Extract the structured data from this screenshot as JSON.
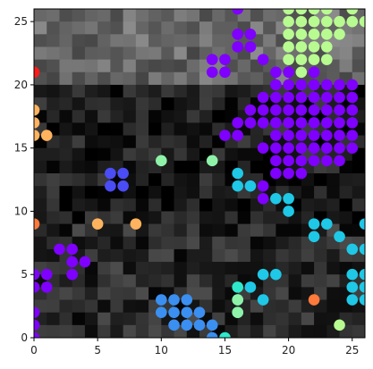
{
  "chart_data": {
    "type": "scatter",
    "title": "",
    "xlabel": "",
    "ylabel": "",
    "xlim": [
      0,
      26
    ],
    "ylim": [
      0,
      26
    ],
    "grid": false,
    "x_ticks": [
      0,
      5,
      10,
      15,
      20,
      25
    ],
    "y_ticks": [
      0,
      5,
      10,
      15,
      20,
      25
    ],
    "x_tick_labels": [
      "0",
      "5",
      "10",
      "15",
      "20",
      "25"
    ],
    "y_tick_labels": [
      "0",
      "5",
      "10",
      "15",
      "20",
      "25"
    ],
    "background": {
      "type": "heatmap",
      "colormap": "gray",
      "grid_size": [
        26,
        26
      ],
      "description_levels": [
        "black",
        "dark gray",
        "mid gray",
        "light gray"
      ]
    },
    "series": [
      {
        "color": "#7f00ff",
        "points": [
          [
            16,
            26
          ],
          [
            16,
            24
          ],
          [
            17,
            24
          ],
          [
            16,
            23
          ],
          [
            17,
            23
          ],
          [
            14,
            22
          ],
          [
            15,
            22
          ],
          [
            14,
            21
          ],
          [
            15,
            21
          ],
          [
            18,
            22
          ],
          [
            19,
            21
          ],
          [
            20,
            21
          ],
          [
            21,
            21
          ],
          [
            22,
            21
          ],
          [
            19,
            20
          ],
          [
            20,
            20
          ],
          [
            21,
            20
          ],
          [
            22,
            20
          ],
          [
            23,
            20
          ],
          [
            24,
            20
          ],
          [
            25,
            20
          ],
          [
            18,
            19
          ],
          [
            19,
            19
          ],
          [
            20,
            19
          ],
          [
            21,
            19
          ],
          [
            22,
            19
          ],
          [
            23,
            19
          ],
          [
            24,
            19
          ],
          [
            25,
            19
          ],
          [
            17,
            18
          ],
          [
            18,
            18
          ],
          [
            19,
            18
          ],
          [
            20,
            18
          ],
          [
            21,
            18
          ],
          [
            22,
            18
          ],
          [
            23,
            18
          ],
          [
            24,
            18
          ],
          [
            25,
            18
          ],
          [
            16,
            17
          ],
          [
            17,
            17
          ],
          [
            18,
            17
          ],
          [
            19,
            17
          ],
          [
            20,
            17
          ],
          [
            21,
            17
          ],
          [
            22,
            17
          ],
          [
            23,
            17
          ],
          [
            24,
            17
          ],
          [
            25,
            17
          ],
          [
            15,
            16
          ],
          [
            16,
            16
          ],
          [
            19,
            16
          ],
          [
            20,
            16
          ],
          [
            21,
            16
          ],
          [
            22,
            16
          ],
          [
            23,
            16
          ],
          [
            24,
            16
          ],
          [
            25,
            16
          ],
          [
            18,
            15
          ],
          [
            19,
            15
          ],
          [
            20,
            15
          ],
          [
            21,
            15
          ],
          [
            22,
            15
          ],
          [
            23,
            15
          ],
          [
            24,
            15
          ],
          [
            25,
            15
          ],
          [
            19,
            14
          ],
          [
            20,
            14
          ],
          [
            21,
            14
          ],
          [
            22,
            14
          ],
          [
            23,
            14
          ],
          [
            24,
            14
          ],
          [
            19,
            13
          ],
          [
            20,
            13
          ],
          [
            21,
            13
          ],
          [
            17,
            12
          ],
          [
            18,
            12
          ],
          [
            18,
            11
          ],
          [
            2,
            7
          ],
          [
            3,
            7
          ],
          [
            3,
            6
          ],
          [
            4,
            6
          ],
          [
            0,
            5
          ],
          [
            1,
            5
          ],
          [
            0,
            4
          ],
          [
            1,
            4
          ],
          [
            3,
            5
          ],
          [
            0,
            2
          ],
          [
            0,
            1
          ],
          [
            0,
            0
          ]
        ]
      },
      {
        "color": "#4a4cf6",
        "points": [
          [
            6,
            13
          ],
          [
            7,
            13
          ],
          [
            6,
            12
          ],
          [
            7,
            12
          ]
        ]
      },
      {
        "color": "#3a8ff0",
        "points": [
          [
            10,
            3
          ],
          [
            11,
            3
          ],
          [
            12,
            3
          ],
          [
            10,
            2
          ],
          [
            11,
            2
          ],
          [
            12,
            2
          ],
          [
            13,
            2
          ],
          [
            11,
            1
          ],
          [
            12,
            1
          ],
          [
            13,
            1
          ],
          [
            14,
            1
          ],
          [
            14,
            0
          ]
        ]
      },
      {
        "color": "#1ec8e6",
        "points": [
          [
            16,
            13
          ],
          [
            16,
            12
          ],
          [
            17,
            12
          ],
          [
            19,
            11
          ],
          [
            20,
            11
          ],
          [
            20,
            10
          ],
          [
            22,
            9
          ],
          [
            23,
            9
          ],
          [
            22,
            8
          ],
          [
            24,
            8
          ],
          [
            26,
            9
          ],
          [
            25,
            7
          ],
          [
            26,
            7
          ],
          [
            18,
            5
          ],
          [
            19,
            5
          ],
          [
            17,
            4
          ],
          [
            18,
            3
          ],
          [
            25,
            5
          ],
          [
            26,
            5
          ],
          [
            25,
            4
          ],
          [
            26,
            4
          ],
          [
            25,
            3
          ],
          [
            26,
            3
          ]
        ]
      },
      {
        "color": "#2ee8cd",
        "points": [
          [
            16,
            4
          ],
          [
            16,
            3
          ],
          [
            16,
            2
          ],
          [
            15,
            0
          ]
        ]
      },
      {
        "color": "#8ef2a8",
        "points": [
          [
            10,
            14
          ],
          [
            14,
            14
          ],
          [
            16,
            3
          ],
          [
            16,
            2
          ]
        ]
      },
      {
        "color": "#b8fb90",
        "points": [
          [
            20,
            26
          ],
          [
            21,
            26
          ],
          [
            22,
            26
          ],
          [
            23,
            26
          ],
          [
            25,
            26
          ],
          [
            20,
            25
          ],
          [
            21,
            25
          ],
          [
            22,
            25
          ],
          [
            23,
            25
          ],
          [
            24,
            25
          ],
          [
            25,
            25
          ],
          [
            26,
            25
          ],
          [
            20,
            24
          ],
          [
            21,
            24
          ],
          [
            22,
            24
          ],
          [
            23,
            24
          ],
          [
            24,
            24
          ],
          [
            20,
            23
          ],
          [
            21,
            23
          ],
          [
            22,
            23
          ],
          [
            23,
            23
          ],
          [
            20,
            22
          ],
          [
            21,
            22
          ],
          [
            22,
            22
          ],
          [
            23,
            22
          ],
          [
            21,
            21
          ],
          [
            24,
            1
          ]
        ]
      },
      {
        "color": "#ffb35e",
        "points": [
          [
            0,
            18
          ],
          [
            0,
            17
          ],
          [
            0,
            16
          ],
          [
            1,
            16
          ],
          [
            5,
            9
          ],
          [
            8,
            9
          ]
        ]
      },
      {
        "color": "#ff7a3b",
        "points": [
          [
            22,
            3
          ],
          [
            0,
            9
          ]
        ]
      },
      {
        "color": "#ff1a1a",
        "points": [
          [
            0,
            21
          ]
        ]
      }
    ]
  }
}
